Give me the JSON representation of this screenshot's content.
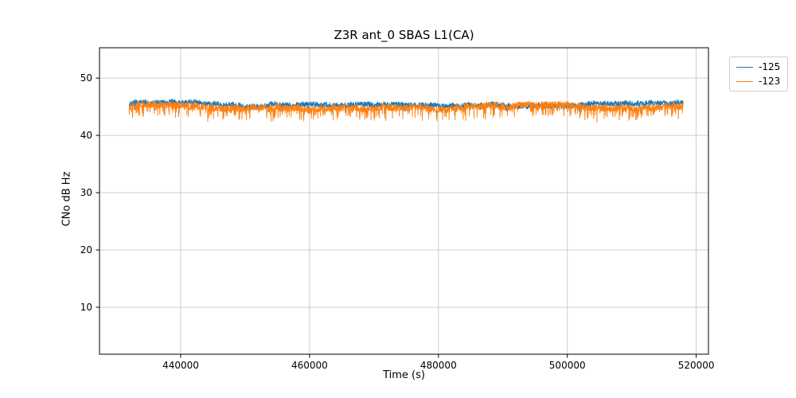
{
  "chart_data": {
    "type": "line",
    "title": "Z3R ant_0 SBAS L1(CA)",
    "xlabel": "Time (s)",
    "ylabel": "CNo dB Hz",
    "xlim": [
      427400,
      521900
    ],
    "ylim": [
      1.8,
      55.3
    ],
    "x_ticks": [
      440000,
      460000,
      480000,
      500000,
      520000
    ],
    "y_ticks": [
      10,
      20,
      30,
      40,
      50
    ],
    "grid": true,
    "grid_color": "#cccccc",
    "legend_position": "outside upper right",
    "series": [
      {
        "name": "-125",
        "color": "#1f77b4",
        "x_start": 432000,
        "x_end": 518000,
        "base": 45.5,
        "mean": 45.5,
        "range": [
          44.2,
          46.4
        ],
        "fast_noise": [
          -0.5,
          0.5
        ],
        "spike_prob": 0.03,
        "spike_depth_max": 0.9,
        "seed": 7,
        "description": "noisy near-constant C/No trace around 45.5 dB-Hz"
      },
      {
        "name": "-123",
        "color": "#ff7f0e",
        "x_start": 432000,
        "x_end": 518000,
        "base": 45.3,
        "mean": 44.6,
        "range": [
          41.6,
          45.9
        ],
        "fast_noise": [
          -0.95,
          0.35
        ],
        "spike_prob": 0.16,
        "spike_depth_max": 2.0,
        "seed": 13,
        "description": "noisy near-constant C/No trace around 44.5 dB-Hz with frequent downward spikes to ~42"
      }
    ]
  }
}
